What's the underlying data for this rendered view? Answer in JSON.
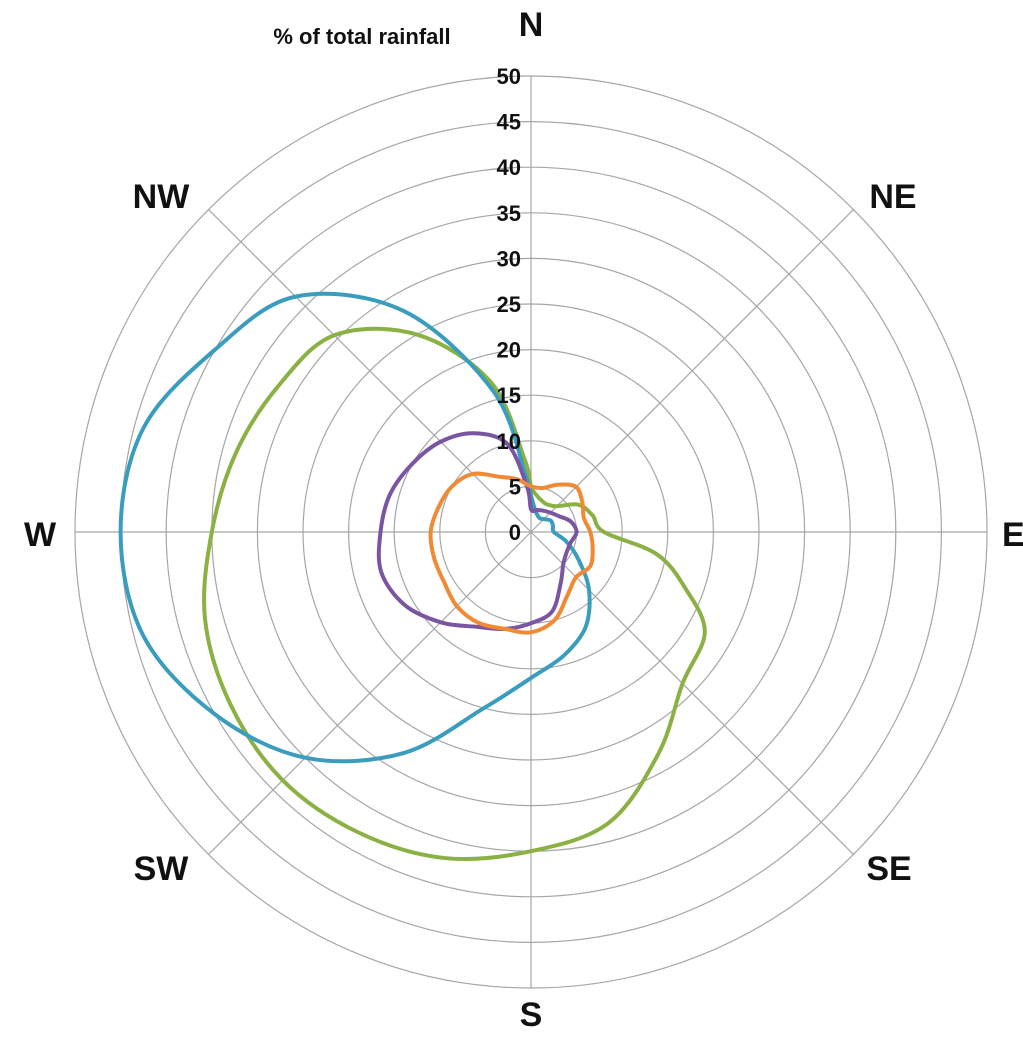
{
  "chart_data": {
    "type": "radar",
    "axis_title": "% of total rainfall",
    "rlim": [
      0,
      50
    ],
    "rticks": [
      "0",
      "5",
      "10",
      "15",
      "20",
      "25",
      "30",
      "35",
      "40",
      "45",
      "50"
    ],
    "directions": [
      "N",
      "NE",
      "E",
      "SE",
      "S",
      "SW",
      "W",
      "NW"
    ],
    "grid": true,
    "legend": "none",
    "series": [
      {
        "color": "#8bb144",
        "angles": [
          0,
          10,
          20,
          30,
          45,
          60,
          75,
          90,
          100,
          110,
          120,
          135,
          150,
          165,
          180,
          195,
          210,
          225,
          240,
          255,
          270,
          285,
          300,
          315,
          330,
          345,
          355
        ],
        "values": [
          5,
          4,
          3.6,
          3.5,
          4,
          6,
          7,
          8,
          14,
          18,
          22,
          23.5,
          28,
          33,
          35,
          37,
          38,
          38.5,
          38,
          37,
          35,
          33.5,
          32,
          30.5,
          25,
          17,
          8
        ]
      },
      {
        "color": "#3a9dbd",
        "angles": [
          0,
          10,
          30,
          45,
          60,
          75,
          90,
          105,
          120,
          135,
          150,
          165,
          180,
          195,
          210,
          225,
          240,
          255,
          270,
          285,
          300,
          315,
          330,
          345,
          355
        ],
        "values": [
          4,
          2.5,
          1.8,
          2,
          2.5,
          2.5,
          2.5,
          4,
          6,
          9,
          12,
          14,
          16,
          20,
          28,
          35,
          40,
          44,
          45,
          44,
          40,
          36.5,
          28,
          16,
          6
        ]
      },
      {
        "color": "#7a55a1",
        "angles": [
          0,
          15,
          30,
          45,
          60,
          75,
          90,
          105,
          120,
          135,
          150,
          165,
          180,
          195,
          210,
          225,
          240,
          255,
          270,
          285,
          300,
          315,
          330,
          345,
          355
        ],
        "values": [
          2.5,
          2.5,
          2.7,
          3,
          3.5,
          4.5,
          5,
          4.5,
          4.5,
          5,
          6.5,
          9,
          10,
          11,
          12,
          14,
          16,
          17,
          16.5,
          16,
          15,
          14,
          12.5,
          10,
          5
        ]
      },
      {
        "color": "#f08a35",
        "angles": [
          0,
          15,
          30,
          45,
          60,
          75,
          90,
          105,
          120,
          135,
          150,
          165,
          180,
          195,
          210,
          225,
          240,
          255,
          270,
          285,
          300,
          315,
          330,
          345,
          360
        ],
        "values": [
          5,
          5,
          6,
          7,
          6.5,
          6,
          6.5,
          7,
          7.5,
          7,
          8,
          10,
          11,
          11,
          11.5,
          11.5,
          11,
          11,
          11,
          10.5,
          10,
          9,
          7,
          6,
          5
        ]
      }
    ]
  }
}
